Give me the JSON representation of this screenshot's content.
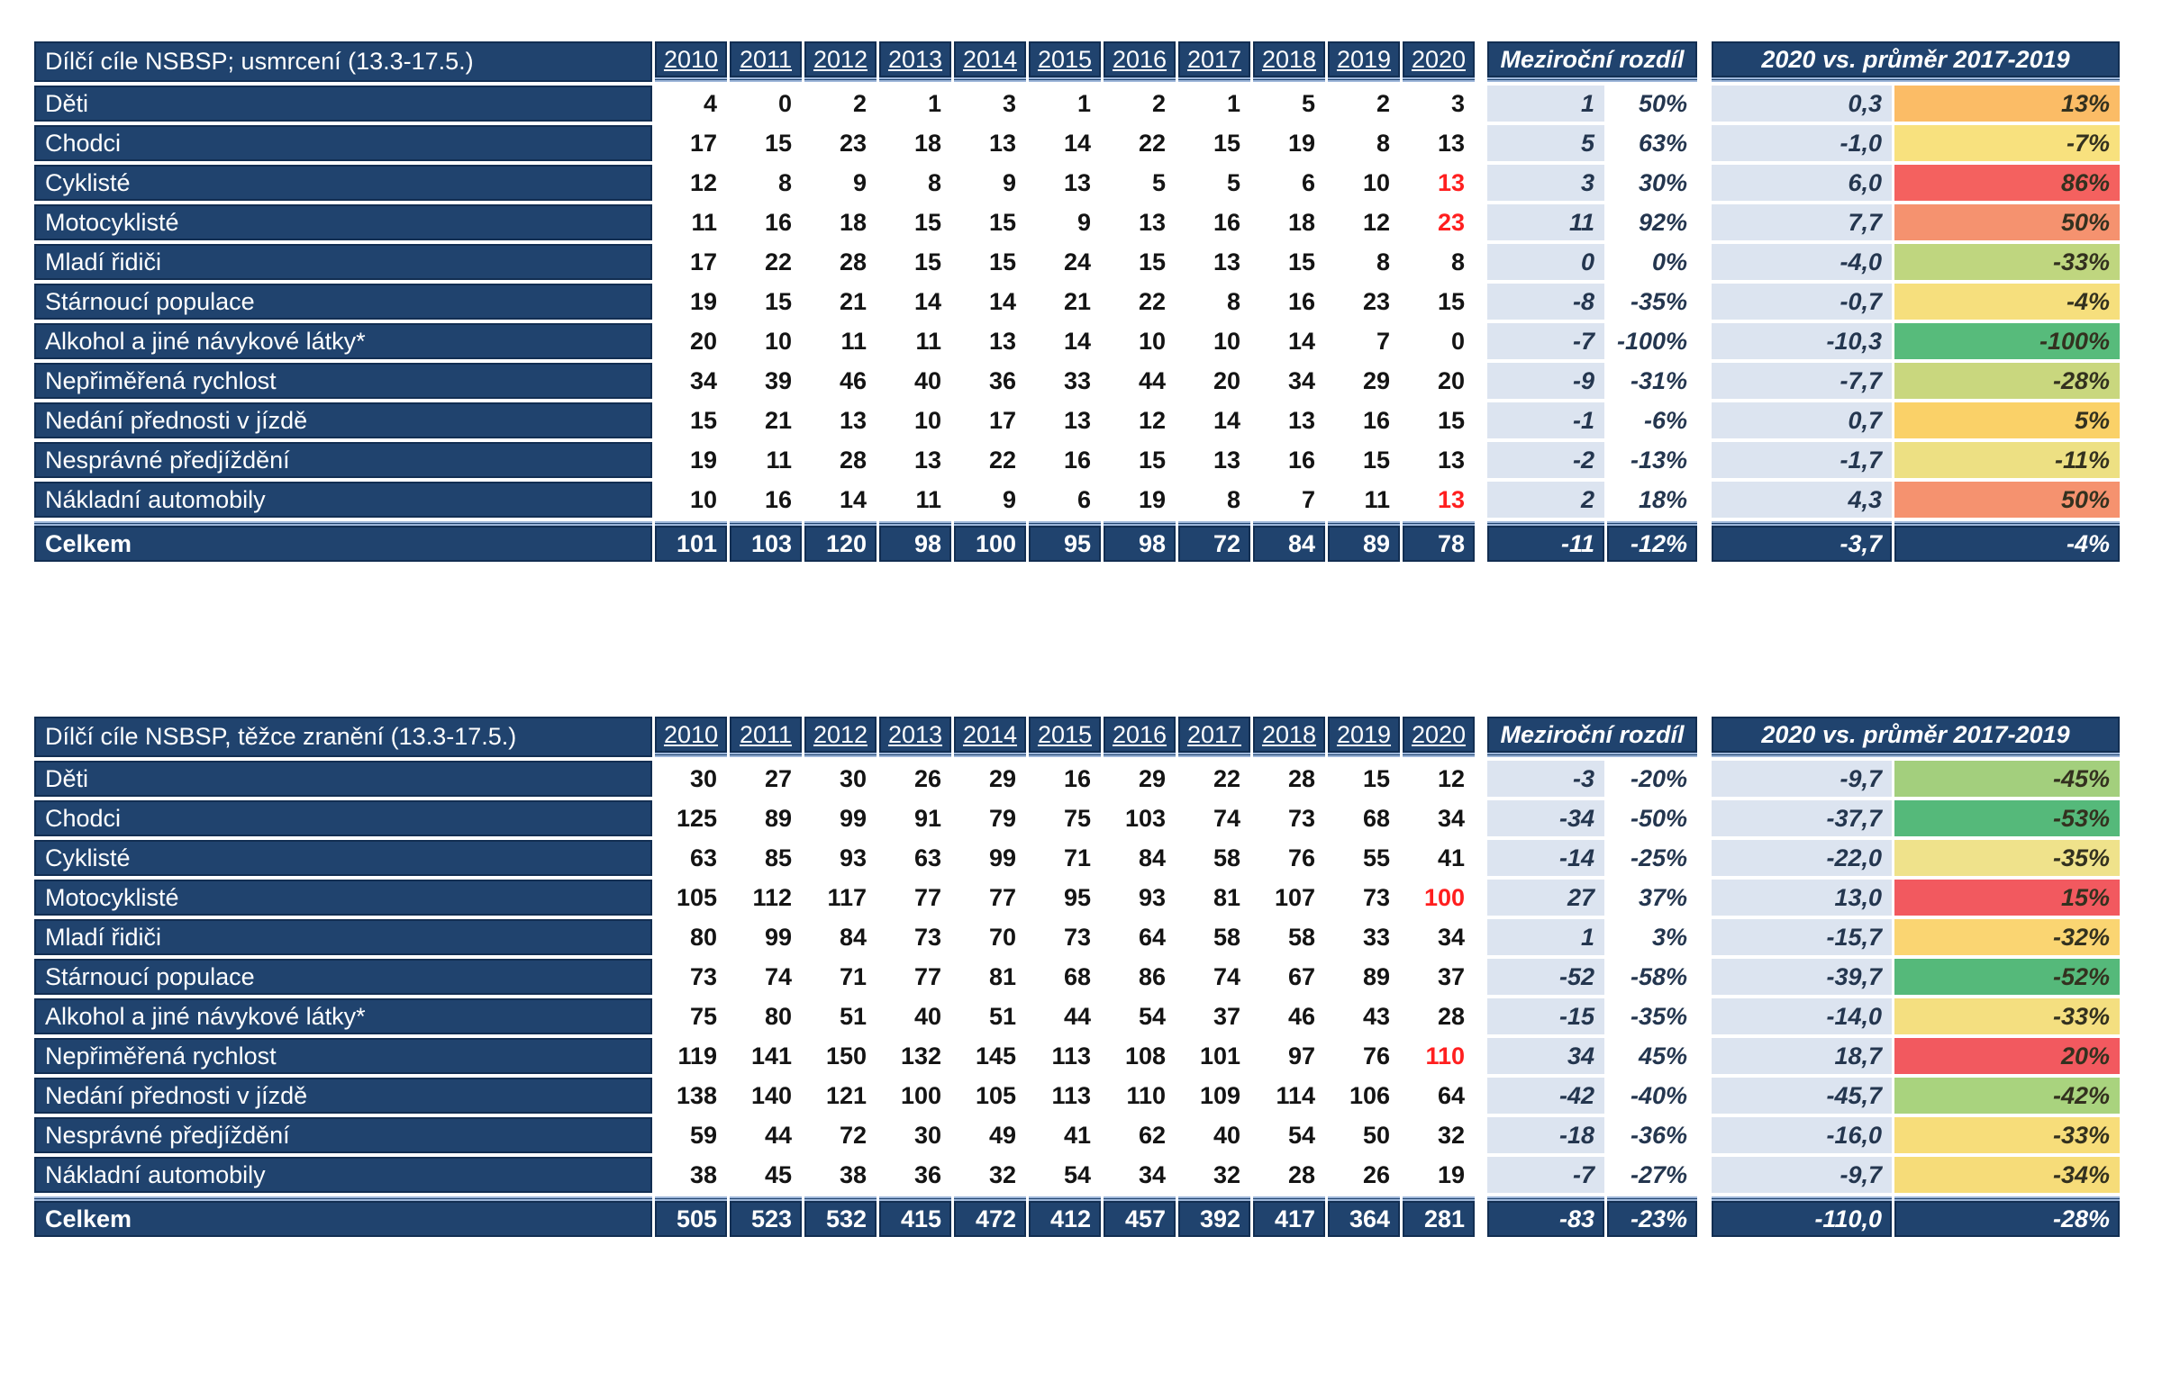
{
  "colors": {
    "navy": "#20436E",
    "alt_column": "#DCE4F0",
    "red_value_text": "#FF1F1F",
    "double_rule": "#9DB6D9"
  },
  "headers": {
    "yoy": "Meziroční rozdíl",
    "vs_avg": "2020 vs. průměr 2017-2019"
  },
  "tables": [
    {
      "title": "Dílčí cíle NSBSP; usmrcení (13.3-17.5.)",
      "years": [
        "2010",
        "2011",
        "2012",
        "2013",
        "2014",
        "2015",
        "2016",
        "2017",
        "2018",
        "2019",
        "2020"
      ],
      "rows": [
        {
          "label": "Děti",
          "values": [
            "4",
            "0",
            "2",
            "1",
            "3",
            "1",
            "2",
            "1",
            "5",
            "2",
            "3"
          ],
          "red_2020": false,
          "yoy_diff": "1",
          "yoy_pct": "50%",
          "vs_diff": "0,3",
          "vs_pct": "13%",
          "vs_color": "#FBBC66"
        },
        {
          "label": "Chodci",
          "values": [
            "17",
            "15",
            "23",
            "18",
            "13",
            "14",
            "22",
            "15",
            "19",
            "8",
            "13"
          ],
          "red_2020": false,
          "yoy_diff": "5",
          "yoy_pct": "63%",
          "vs_diff": "-1,0",
          "vs_pct": "-7%",
          "vs_color": "#F8E17E"
        },
        {
          "label": "Cyklisté",
          "values": [
            "12",
            "8",
            "9",
            "8",
            "9",
            "13",
            "5",
            "5",
            "6",
            "10",
            "13"
          ],
          "red_2020": true,
          "yoy_diff": "3",
          "yoy_pct": "30%",
          "vs_diff": "6,0",
          "vs_pct": "86%",
          "vs_color": "#F4615F"
        },
        {
          "label": "Motocyklisté",
          "values": [
            "11",
            "16",
            "18",
            "15",
            "15",
            "9",
            "13",
            "16",
            "18",
            "12",
            "23"
          ],
          "red_2020": true,
          "yoy_diff": "11",
          "yoy_pct": "92%",
          "vs_diff": "7,7",
          "vs_pct": "50%",
          "vs_color": "#F5926F"
        },
        {
          "label": "Mladí řidiči",
          "values": [
            "17",
            "22",
            "28",
            "15",
            "15",
            "24",
            "15",
            "13",
            "15",
            "8",
            "8"
          ],
          "red_2020": false,
          "yoy_diff": "0",
          "yoy_pct": "0%",
          "vs_diff": "-4,0",
          "vs_pct": "-33%",
          "vs_color": "#BFD67F"
        },
        {
          "label": "Stárnoucí populace",
          "values": [
            "19",
            "15",
            "21",
            "14",
            "14",
            "21",
            "22",
            "8",
            "16",
            "23",
            "15"
          ],
          "red_2020": false,
          "yoy_diff": "-8",
          "yoy_pct": "-35%",
          "vs_diff": "-0,7",
          "vs_pct": "-4%",
          "vs_color": "#F6DF7D"
        },
        {
          "label": "Alkohol a jiné návykové látky*",
          "values": [
            "20",
            "10",
            "11",
            "11",
            "13",
            "14",
            "10",
            "10",
            "14",
            "7",
            "0"
          ],
          "red_2020": false,
          "yoy_diff": "-7",
          "yoy_pct": "-100%",
          "vs_diff": "-10,3",
          "vs_pct": "-100%",
          "vs_color": "#57BB7B"
        },
        {
          "label": "Nepřiměřená rychlost",
          "values": [
            "34",
            "39",
            "46",
            "40",
            "36",
            "33",
            "44",
            "20",
            "34",
            "29",
            "20"
          ],
          "red_2020": false,
          "yoy_diff": "-9",
          "yoy_pct": "-31%",
          "vs_diff": "-7,7",
          "vs_pct": "-28%",
          "vs_color": "#C9D77E"
        },
        {
          "label": "Nedání přednosti v jízdě",
          "values": [
            "15",
            "21",
            "13",
            "10",
            "17",
            "13",
            "12",
            "14",
            "13",
            "16",
            "15"
          ],
          "red_2020": false,
          "yoy_diff": "-1",
          "yoy_pct": "-6%",
          "vs_diff": "0,7",
          "vs_pct": "5%",
          "vs_color": "#FAD168"
        },
        {
          "label": "Nesprávné předjíždění",
          "values": [
            "19",
            "11",
            "28",
            "13",
            "22",
            "16",
            "15",
            "13",
            "16",
            "15",
            "13"
          ],
          "red_2020": false,
          "yoy_diff": "-2",
          "yoy_pct": "-13%",
          "vs_diff": "-1,7",
          "vs_pct": "-11%",
          "vs_color": "#EDE083"
        },
        {
          "label": "Nákladní automobily",
          "values": [
            "10",
            "16",
            "14",
            "11",
            "9",
            "6",
            "19",
            "8",
            "7",
            "11",
            "13"
          ],
          "red_2020": true,
          "yoy_diff": "2",
          "yoy_pct": "18%",
          "vs_diff": "4,3",
          "vs_pct": "50%",
          "vs_color": "#F5926F"
        }
      ],
      "total": {
        "label": "Celkem",
        "values": [
          "101",
          "103",
          "120",
          "98",
          "100",
          "95",
          "98",
          "72",
          "84",
          "89",
          "78"
        ],
        "yoy_diff": "-11",
        "yoy_pct": "-12%",
        "vs_diff": "-3,7",
        "vs_pct": "-4%"
      }
    },
    {
      "title": "Dílčí cíle NSBSP, těžce zranění (13.3-17.5.)",
      "years": [
        "2010",
        "2011",
        "2012",
        "2013",
        "2014",
        "2015",
        "2016",
        "2017",
        "2018",
        "2019",
        "2020"
      ],
      "rows": [
        {
          "label": "Děti",
          "values": [
            "30",
            "27",
            "30",
            "26",
            "29",
            "16",
            "29",
            "22",
            "28",
            "15",
            "12"
          ],
          "red_2020": false,
          "yoy_diff": "-3",
          "yoy_pct": "-20%",
          "vs_diff": "-9,7",
          "vs_pct": "-45%",
          "vs_color": "#A3CF7D"
        },
        {
          "label": "Chodci",
          "values": [
            "125",
            "89",
            "99",
            "91",
            "79",
            "75",
            "103",
            "74",
            "73",
            "68",
            "34"
          ],
          "red_2020": false,
          "yoy_diff": "-34",
          "yoy_pct": "-50%",
          "vs_diff": "-37,7",
          "vs_pct": "-53%",
          "vs_color": "#55B97A"
        },
        {
          "label": "Cyklisté",
          "values": [
            "63",
            "85",
            "93",
            "63",
            "99",
            "71",
            "84",
            "58",
            "76",
            "55",
            "41"
          ],
          "red_2020": false,
          "yoy_diff": "-14",
          "yoy_pct": "-25%",
          "vs_diff": "-22,0",
          "vs_pct": "-35%",
          "vs_color": "#EFE28B"
        },
        {
          "label": "Motocyklisté",
          "values": [
            "105",
            "112",
            "117",
            "77",
            "77",
            "95",
            "93",
            "81",
            "107",
            "73",
            "100"
          ],
          "red_2020": true,
          "yoy_diff": "27",
          "yoy_pct": "37%",
          "vs_diff": "13,0",
          "vs_pct": "15%",
          "vs_color": "#F2595F"
        },
        {
          "label": "Mladí řidiči",
          "values": [
            "80",
            "99",
            "84",
            "73",
            "70",
            "73",
            "64",
            "58",
            "58",
            "33",
            "34"
          ],
          "red_2020": false,
          "yoy_diff": "1",
          "yoy_pct": "3%",
          "vs_diff": "-15,7",
          "vs_pct": "-32%",
          "vs_color": "#FAD572"
        },
        {
          "label": "Stárnoucí populace",
          "values": [
            "73",
            "74",
            "71",
            "77",
            "81",
            "68",
            "86",
            "74",
            "67",
            "89",
            "37"
          ],
          "red_2020": false,
          "yoy_diff": "-52",
          "yoy_pct": "-58%",
          "vs_diff": "-39,7",
          "vs_pct": "-52%",
          "vs_color": "#55B97A"
        },
        {
          "label": "Alkohol a jiné návykové látky*",
          "values": [
            "75",
            "80",
            "51",
            "40",
            "51",
            "44",
            "54",
            "37",
            "46",
            "43",
            "28"
          ],
          "red_2020": false,
          "yoy_diff": "-15",
          "yoy_pct": "-35%",
          "vs_diff": "-14,0",
          "vs_pct": "-33%",
          "vs_color": "#F4DF80"
        },
        {
          "label": "Nepřiměřená rychlost",
          "values": [
            "119",
            "141",
            "150",
            "132",
            "145",
            "113",
            "108",
            "101",
            "97",
            "76",
            "110"
          ],
          "red_2020": true,
          "yoy_diff": "34",
          "yoy_pct": "45%",
          "vs_diff": "18,7",
          "vs_pct": "20%",
          "vs_color": "#F2595F"
        },
        {
          "label": "Nedání přednosti v jízdě",
          "values": [
            "138",
            "140",
            "121",
            "100",
            "105",
            "113",
            "110",
            "109",
            "114",
            "106",
            "64"
          ],
          "red_2020": false,
          "yoy_diff": "-42",
          "yoy_pct": "-40%",
          "vs_diff": "-45,7",
          "vs_pct": "-42%",
          "vs_color": "#A9D37E"
        },
        {
          "label": "Nesprávné předjíždění",
          "values": [
            "59",
            "44",
            "72",
            "30",
            "49",
            "41",
            "62",
            "40",
            "54",
            "50",
            "32"
          ],
          "red_2020": false,
          "yoy_diff": "-18",
          "yoy_pct": "-36%",
          "vs_diff": "-16,0",
          "vs_pct": "-33%",
          "vs_color": "#F7DD7A"
        },
        {
          "label": "Nákladní automobily",
          "values": [
            "38",
            "45",
            "38",
            "36",
            "32",
            "54",
            "34",
            "32",
            "28",
            "26",
            "19"
          ],
          "red_2020": false,
          "yoy_diff": "-7",
          "yoy_pct": "-27%",
          "vs_diff": "-9,7",
          "vs_pct": "-34%",
          "vs_color": "#F6DC79"
        }
      ],
      "total": {
        "label": "Celkem",
        "values": [
          "505",
          "523",
          "532",
          "415",
          "472",
          "412",
          "457",
          "392",
          "417",
          "364",
          "281"
        ],
        "yoy_diff": "-83",
        "yoy_pct": "-23%",
        "vs_diff": "-110,0",
        "vs_pct": "-28%"
      }
    }
  ]
}
